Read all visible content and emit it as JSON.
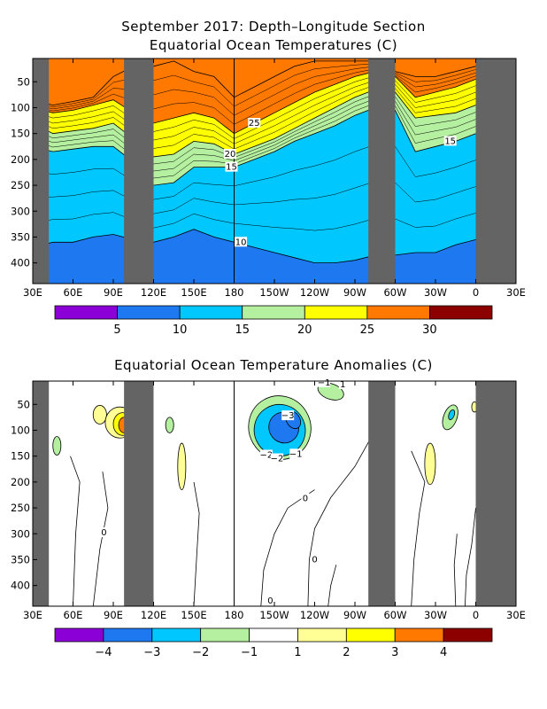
{
  "colors": {
    "land": "#646464",
    "temp_scale": [
      "#8b00d6",
      "#1e78f0",
      "#00c8ff",
      "#b4f0a0",
      "#ffff00",
      "#ff7800",
      "#8c0000"
    ],
    "anom_scale": [
      "#8b00d6",
      "#1e78f0",
      "#00c8ff",
      "#b4f0a0",
      "#ffffff",
      "#ffff96",
      "#ffff00",
      "#ff7800",
      "#8c0000"
    ]
  },
  "chart_data": [
    {
      "type": "heatmap",
      "title": "September 2017: Depth–Longitude Section",
      "subtitle": "Equatorial Ocean Temperatures (C)",
      "xlabel": "",
      "ylabel": "",
      "x_ticks": [
        "30E",
        "60E",
        "90E",
        "120E",
        "150E",
        "180",
        "150W",
        "120W",
        "90W",
        "60W",
        "30W",
        "0",
        "30E"
      ],
      "y_ticks": [
        "50",
        "100",
        "150",
        "200",
        "250",
        "300",
        "350",
        "400"
      ],
      "y_reversed": true,
      "colorbar_labels": [
        "5",
        "10",
        "15",
        "20",
        "25",
        "30"
      ],
      "contour_labels": [
        "25",
        "20",
        "15",
        "15",
        "10"
      ],
      "layers": [
        {
          "value": 30,
          "depths": [
            85,
            95,
            88,
            80,
            40,
            20,
            20,
            10,
            30,
            40,
            80,
            60,
            40,
            20,
            10,
            10,
            10,
            10,
            30,
            40,
            40,
            30,
            20,
            10,
            15
          ]
        },
        {
          "value": 25,
          "depths": [
            100,
            110,
            105,
            95,
            85,
            110,
            130,
            120,
            110,
            120,
            150,
            130,
            110,
            90,
            70,
            55,
            40,
            30,
            40,
            80,
            70,
            60,
            45,
            30,
            40
          ]
        },
        {
          "value": 20,
          "depths": [
            130,
            150,
            145,
            140,
            130,
            160,
            195,
            190,
            165,
            170,
            190,
            175,
            160,
            140,
            120,
            100,
            80,
            65,
            70,
            120,
            115,
            110,
            95,
            80,
            90
          ]
        },
        {
          "value": 15,
          "depths": [
            175,
            185,
            180,
            175,
            175,
            205,
            250,
            245,
            215,
            215,
            215,
            200,
            185,
            165,
            150,
            135,
            115,
            100,
            105,
            185,
            175,
            165,
            150,
            140,
            160
          ]
        },
        {
          "value": 10,
          "depths": [
            370,
            360,
            360,
            350,
            345,
            355,
            360,
            350,
            335,
            350,
            360,
            370,
            380,
            390,
            400,
            400,
            395,
            385,
            385,
            380,
            380,
            365,
            355,
            350,
            360
          ]
        }
      ]
    },
    {
      "type": "heatmap",
      "title": "Equatorial Ocean Temperature Anomalies (C)",
      "xlabel": "",
      "ylabel": "",
      "x_ticks": [
        "30E",
        "60E",
        "90E",
        "120E",
        "150E",
        "180",
        "150W",
        "120W",
        "90W",
        "60W",
        "30W",
        "0",
        "30E"
      ],
      "y_ticks": [
        "50",
        "100",
        "150",
        "200",
        "250",
        "300",
        "350",
        "400"
      ],
      "y_reversed": true,
      "colorbar_labels": [
        "−4",
        "−3",
        "−2",
        "−1",
        "1",
        "2",
        "3",
        "4"
      ],
      "contour_labels": [
        "−1",
        "−2",
        "−3",
        "−1",
        "−2",
        "0",
        "0",
        "0",
        "0",
        "1"
      ],
      "features": [
        {
          "value": -1,
          "lon": 214,
          "depth": 95,
          "lon_radius": 23,
          "depth_radius": 62,
          "rotation": -30
        },
        {
          "value": -2,
          "lon": 214,
          "depth": 100,
          "lon_radius": 19,
          "depth_radius": 50,
          "rotation": -32
        },
        {
          "value": -3,
          "lon": 217,
          "depth": 95,
          "lon_radius": 11,
          "depth_radius": 30,
          "rotation": -32
        },
        {
          "value": -3,
          "lon": 224,
          "depth": 80,
          "lon_radius": 5,
          "depth_radius": 18,
          "rotation": -30
        },
        {
          "value": 1,
          "lon": 80,
          "depth": 70,
          "lon_radius": 5,
          "depth_radius": 18,
          "rotation": 0
        },
        {
          "value": 1,
          "lon": 95,
          "depth": 85,
          "lon_radius": 11,
          "depth_radius": 30,
          "rotation": 0
        },
        {
          "value": 2,
          "lon": 97,
          "depth": 88,
          "lon_radius": 7,
          "depth_radius": 22,
          "rotation": 0
        },
        {
          "value": 3,
          "lon": 98,
          "depth": 90,
          "lon_radius": 4,
          "depth_radius": 15,
          "rotation": 0
        },
        {
          "value": -1,
          "lon": 48,
          "depth": 130,
          "lon_radius": 3,
          "depth_radius": 18,
          "rotation": 0
        },
        {
          "value": 1,
          "lon": 141,
          "depth": 170,
          "lon_radius": 3,
          "depth_radius": 45,
          "rotation": 0
        },
        {
          "value": -1,
          "lon": 132,
          "depth": 90,
          "lon_radius": 3,
          "depth_radius": 15,
          "rotation": 0
        },
        {
          "value": -1,
          "lon": 341,
          "depth": 75,
          "lon_radius": 5,
          "depth_radius": 25,
          "rotation": 20
        },
        {
          "value": -2,
          "lon": 342,
          "depth": 70,
          "lon_radius": 2,
          "depth_radius": 10,
          "rotation": 20
        },
        {
          "value": 1,
          "lon": 326,
          "depth": 165,
          "lon_radius": 4,
          "depth_radius": 40,
          "rotation": 0
        },
        {
          "value": 1,
          "lon": 359,
          "depth": 55,
          "lon_radius": 2,
          "depth_radius": 10,
          "rotation": 0
        },
        {
          "value": -1,
          "lon": 252,
          "depth": 25,
          "lon_radius": 10,
          "depth_radius": 15,
          "rotation": 20
        }
      ]
    }
  ]
}
